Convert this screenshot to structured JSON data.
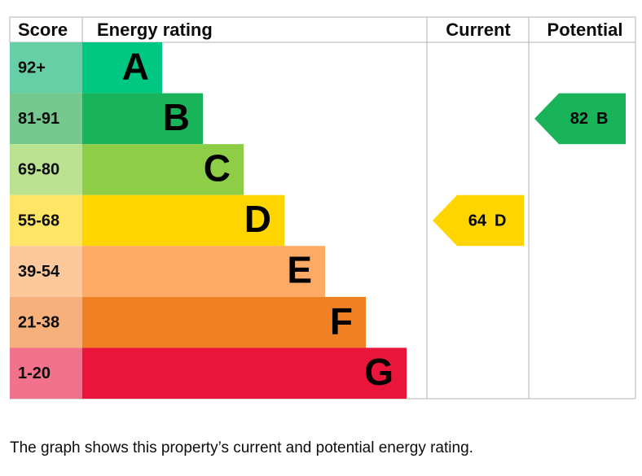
{
  "header": {
    "score": "Score",
    "energy_rating": "Energy rating",
    "current": "Current",
    "potential": "Potential"
  },
  "bands": [
    {
      "score": "92+",
      "letter": "A",
      "color": "#00c781",
      "score_color": "#66cfa6"
    },
    {
      "score": "81-91",
      "letter": "B",
      "color": "#19b459",
      "score_color": "#75c88e"
    },
    {
      "score": "69-80",
      "letter": "C",
      "color": "#8dce46",
      "score_color": "#bbe290"
    },
    {
      "score": "55-68",
      "letter": "D",
      "color": "#ffd500",
      "score_color": "#ffe566"
    },
    {
      "score": "39-54",
      "letter": "E",
      "color": "#fcaa65",
      "score_color": "#fdc89c"
    },
    {
      "score": "21-38",
      "letter": "F",
      "color": "#ef8023",
      "score_color": "#f5b07b"
    },
    {
      "score": "1-20",
      "letter": "G",
      "color": "#e9153b",
      "score_color": "#f1728a"
    }
  ],
  "current": {
    "score": 64,
    "letter": "D"
  },
  "potential": {
    "score": 82,
    "letter": "B"
  },
  "caption": "The graph shows this property’s current and potential energy rating."
}
